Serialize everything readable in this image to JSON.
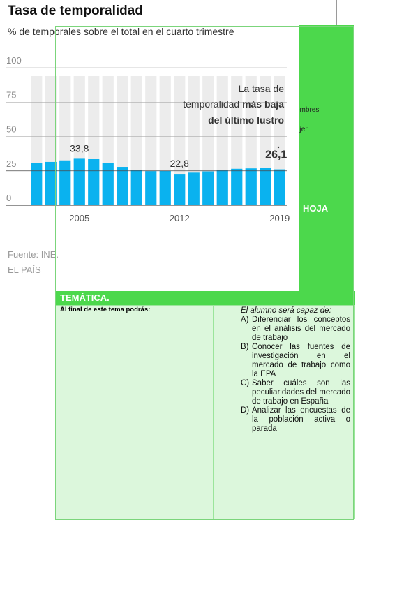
{
  "document": {
    "fragment_line1": "ombres",
    "fragment_line2": "ujer",
    "header_text": "HOJA",
    "section_title": "TEMÁTICA.",
    "table_left_header": "Al final de este tema podrás:",
    "table_right_intro": "El alumno será capaz de:",
    "objectives": [
      {
        "letter": "A)",
        "text": "Diferenciar los conceptos en el análisis del mercado de trabajo"
      },
      {
        "letter": "B)",
        "text": "Conocer las fuentes de investigación en el mercado de trabajo como la EPA"
      },
      {
        "letter": "C)",
        "text": "Saber cuáles son las peculiaridades del mercado de trabajo en España"
      },
      {
        "letter": "D)",
        "text": "Analizar las encuestas de la población activa o parada"
      }
    ],
    "colors": {
      "accent_green": "#4cd84c",
      "table_bg": "#dcf7dc"
    }
  },
  "chart": {
    "title": "Tasa de temporalidad",
    "subtitle": "% de temporales sobre el total en el cuarto trimestre",
    "source": "Fuente: INE.",
    "credit": "EL PAÍS",
    "annotation": {
      "line1": "La tasa de",
      "line2_normal": "temporalidad ",
      "line2_bold": "más baja",
      "line3_bold": "del último lustro"
    },
    "colors": {
      "bar": "#0ab2ef",
      "background_column": "#ececec",
      "text": "#333333",
      "axis": "#555555"
    }
  },
  "chart_data": {
    "type": "bar",
    "categories": [
      "2002",
      "2003",
      "2004",
      "2005",
      "2006",
      "2007",
      "2008",
      "2009",
      "2010",
      "2011",
      "2012",
      "2013",
      "2014",
      "2015",
      "2016",
      "2017",
      "2018",
      "2019"
    ],
    "values": [
      30.8,
      31.5,
      32.6,
      33.8,
      33.5,
      30.9,
      27.9,
      25.4,
      24.8,
      25.0,
      22.8,
      23.7,
      24.6,
      25.7,
      26.5,
      26.8,
      26.9,
      26.1
    ],
    "ylim": [
      0,
      100
    ],
    "yticks": [
      "0",
      "25",
      "50",
      "75",
      "100"
    ],
    "xticks": [
      "2005",
      "2012",
      "2019"
    ],
    "data_labels": [
      {
        "category": "2005",
        "label": "33,8"
      },
      {
        "category": "2012",
        "label": "22,8"
      },
      {
        "category": "2019",
        "label": "26,1"
      }
    ],
    "grid": true,
    "legend": "none"
  }
}
